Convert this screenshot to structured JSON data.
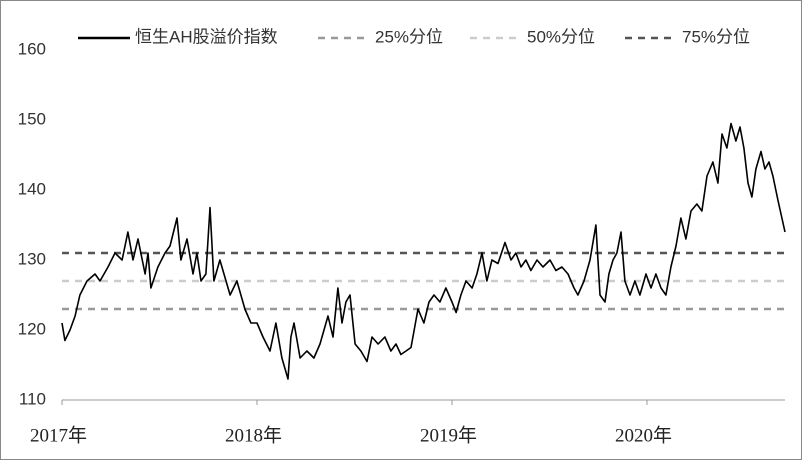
{
  "chart_data": {
    "type": "line",
    "x": [
      2017.0,
      2017.015,
      2017.041,
      2017.067,
      2017.092,
      2017.128,
      2017.169,
      2017.195,
      2017.236,
      2017.272,
      2017.308,
      2017.338,
      2017.364,
      2017.39,
      2017.426,
      2017.441,
      2017.456,
      2017.492,
      2017.528,
      2017.554,
      2017.59,
      2017.61,
      2017.641,
      2017.672,
      2017.692,
      2017.713,
      2017.738,
      2017.759,
      2017.779,
      2017.81,
      2017.862,
      2017.897,
      2017.938,
      2017.969,
      2018.0,
      2018.031,
      2018.067,
      2018.097,
      2018.128,
      2018.159,
      2018.174,
      2018.19,
      2018.221,
      2018.256,
      2018.292,
      2018.323,
      2018.364,
      2018.39,
      2018.415,
      2018.436,
      2018.456,
      2018.477,
      2018.503,
      2018.533,
      2018.564,
      2018.59,
      2018.621,
      2018.656,
      2018.687,
      2018.713,
      2018.738,
      2018.764,
      2018.79,
      2018.826,
      2018.856,
      2018.882,
      2018.908,
      2018.938,
      2018.969,
      2019.0,
      2019.021,
      2019.046,
      2019.072,
      2019.103,
      2019.128,
      2019.154,
      2019.179,
      2019.205,
      2019.236,
      2019.272,
      2019.303,
      2019.328,
      2019.354,
      2019.379,
      2019.405,
      2019.436,
      2019.467,
      2019.503,
      2019.533,
      2019.564,
      2019.595,
      2019.626,
      2019.646,
      2019.677,
      2019.708,
      2019.738,
      2019.759,
      2019.785,
      2019.805,
      2019.826,
      2019.846,
      2019.867,
      2019.887,
      2019.913,
      2019.938,
      2019.964,
      2019.995,
      2020.021,
      2020.046,
      2020.072,
      2020.097,
      2020.123,
      2020.149,
      2020.174,
      2020.2,
      2020.226,
      2020.256,
      2020.282,
      2020.308,
      2020.338,
      2020.364,
      2020.385,
      2020.41,
      2020.431,
      2020.456,
      2020.477,
      2020.497,
      2020.518,
      2020.538,
      2020.559,
      2020.585,
      2020.605,
      2020.626,
      2020.646,
      2020.672,
      2020.692,
      2020.708
    ],
    "series": [
      {
        "name": "恒生AH股溢价指数",
        "color": "#000000",
        "values": [
          121,
          118.5,
          120,
          122,
          125,
          127,
          128,
          127,
          129,
          131,
          130,
          134,
          130,
          133,
          128,
          131,
          126,
          129,
          131,
          132,
          136,
          130,
          133,
          128,
          131,
          127,
          128,
          137.5,
          127,
          130,
          125,
          127,
          123,
          121,
          121,
          119,
          117,
          121,
          116,
          113,
          119,
          121,
          116,
          117,
          116,
          118,
          122,
          119,
          126,
          121,
          124,
          125,
          118,
          117,
          115.5,
          119,
          118,
          119,
          117,
          118,
          116.5,
          117,
          117.5,
          123,
          121,
          124,
          125,
          124,
          126,
          124,
          122.5,
          125,
          127,
          126,
          128,
          131,
          127,
          130,
          129.5,
          132.5,
          130,
          131,
          129,
          130,
          128.5,
          130,
          129,
          130,
          128.5,
          129,
          128,
          126,
          125,
          127,
          130,
          135,
          125,
          124,
          128,
          130,
          131,
          134,
          127,
          125,
          127,
          125,
          128,
          126,
          128,
          126,
          125,
          129,
          132,
          136,
          133,
          137,
          138,
          137,
          142,
          144,
          141,
          148,
          146,
          149.5,
          147,
          149,
          146,
          141,
          139,
          143,
          145.5,
          143,
          144,
          142,
          138.5,
          136,
          134
        ]
      }
    ],
    "reference_lines": [
      {
        "name": "25%分位",
        "value": 123,
        "color": "#999999"
      },
      {
        "name": "50%分位",
        "value": 127,
        "color": "#cccccc"
      },
      {
        "name": "75%分位",
        "value": 131,
        "color": "#555555"
      }
    ],
    "xlim": [
      2017,
      2020.708
    ],
    "xticks": [
      {
        "value": 2017,
        "label": "2017年"
      },
      {
        "value": 2018,
        "label": "2018年"
      },
      {
        "value": 2019,
        "label": "2019年"
      },
      {
        "value": 2020,
        "label": "2020年"
      }
    ],
    "ylim": [
      110,
      160
    ],
    "yticks": [
      110,
      120,
      130,
      140,
      150,
      160
    ],
    "grid": false
  }
}
